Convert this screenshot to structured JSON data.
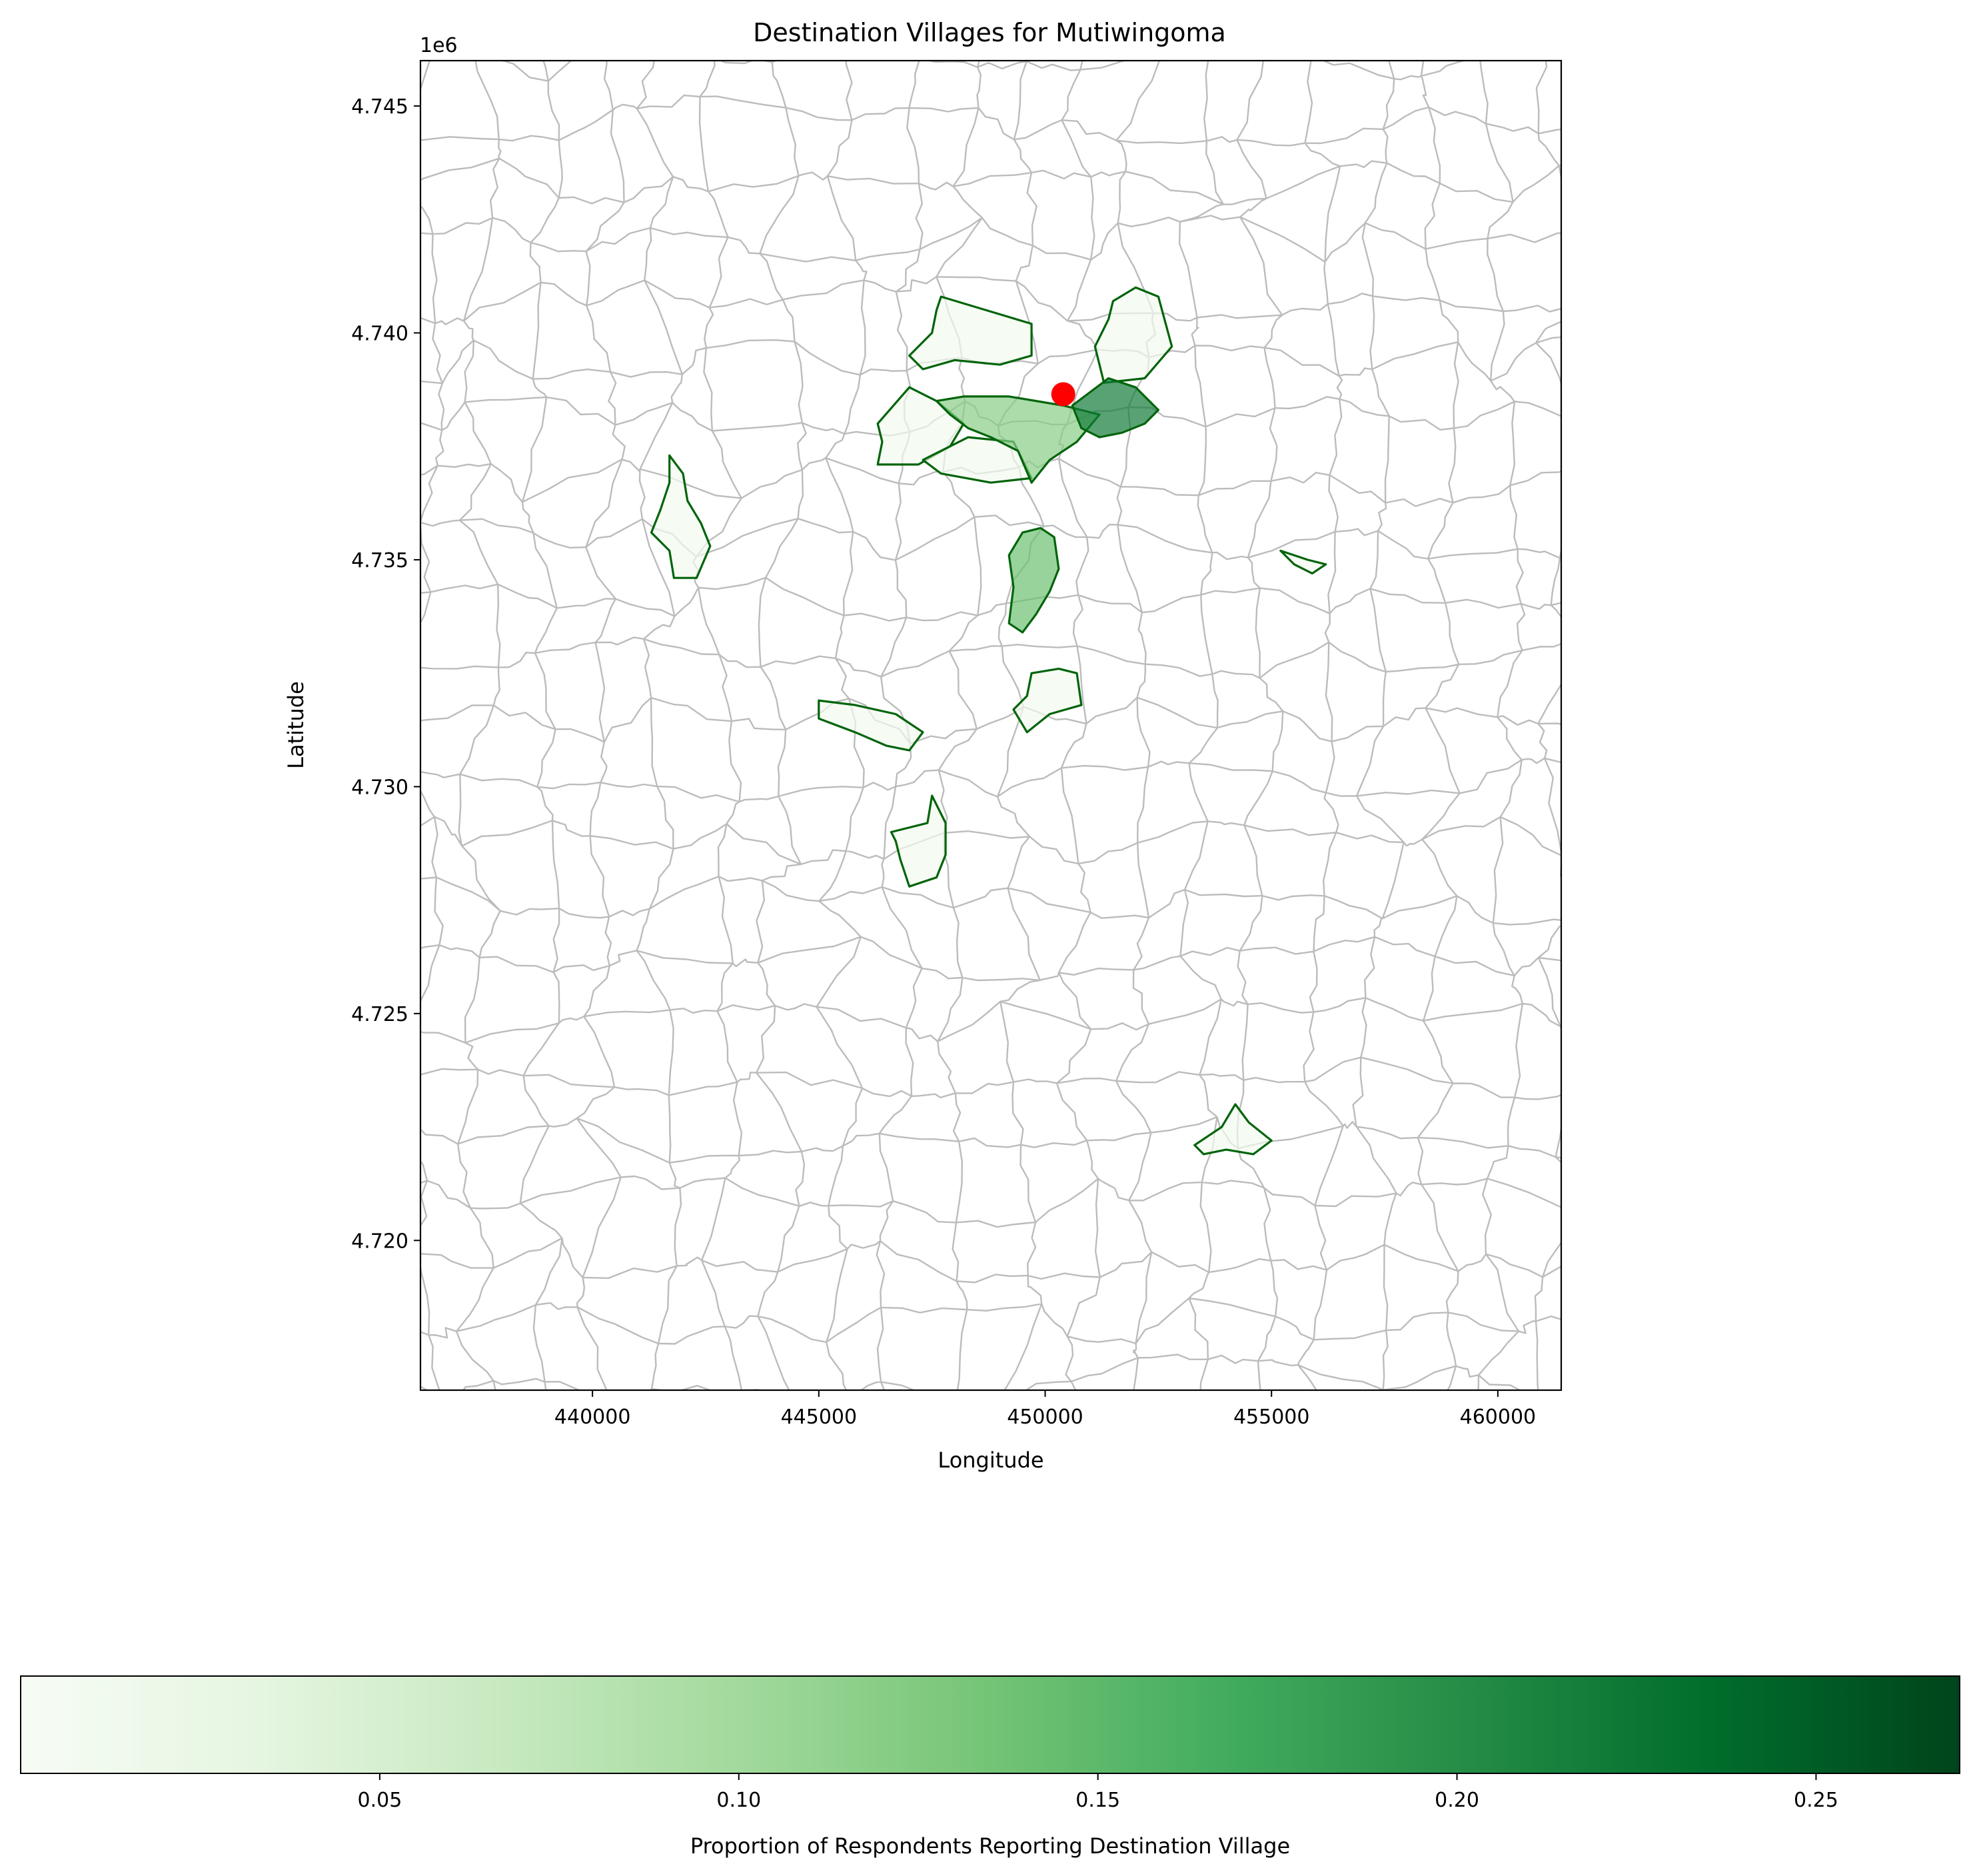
{
  "map": {
    "title": "Destination Villages for Mutiwingoma",
    "xlabel": "Longitude",
    "ylabel": "Latitude",
    "y_offset_label": "1e6",
    "x_ticks": [
      {
        "value": 440000,
        "label": "440000"
      },
      {
        "value": 445000,
        "label": "445000"
      },
      {
        "value": 450000,
        "label": "450000"
      },
      {
        "value": 455000,
        "label": "455000"
      },
      {
        "value": 460000,
        "label": "460000"
      }
    ],
    "y_ticks": [
      {
        "value": 4720000,
        "label": "4.720"
      },
      {
        "value": 4725000,
        "label": "4.725"
      },
      {
        "value": 4730000,
        "label": "4.730"
      },
      {
        "value": 4735000,
        "label": "4.735"
      },
      {
        "value": 4740000,
        "label": "4.740"
      },
      {
        "value": 4745000,
        "label": "4.745"
      }
    ],
    "xlim": [
      436200,
      461400
    ],
    "ylim": [
      4716700,
      4746000
    ],
    "origin_marker": {
      "x": 450400,
      "y": 4738650,
      "color": "#ff0000"
    },
    "colors": {
      "boundary": "#bcbcbc",
      "destination_edge": "#00640a",
      "frame": "#000000"
    }
  },
  "colorbar": {
    "label": "Proportion of Respondents Reporting Destination Village",
    "range": [
      0.0,
      0.27
    ],
    "cmap": "Greens",
    "ticks": [
      {
        "value": 0.05,
        "label": "0.05"
      },
      {
        "value": 0.1,
        "label": "0.10"
      },
      {
        "value": 0.15,
        "label": "0.15"
      },
      {
        "value": 0.2,
        "label": "0.20"
      },
      {
        "value": 0.25,
        "label": "0.25"
      }
    ]
  },
  "chart_data": {
    "type": "choropleth",
    "title": "Destination Villages for Mutiwingoma",
    "xlabel": "Longitude",
    "ylabel": "Latitude",
    "xlim": [
      436200,
      461400
    ],
    "ylim": [
      4716700,
      4746000
    ],
    "origin": {
      "x": 450400,
      "y": 4738650
    },
    "destinations": [
      {
        "id": "north-thin",
        "value": 0.01,
        "outline": [
          [
            447700,
            4740800
          ],
          [
            448700,
            4740500
          ],
          [
            449700,
            4740200
          ],
          [
            449700,
            4739500
          ],
          [
            449000,
            4739300
          ],
          [
            448000,
            4739400
          ],
          [
            447300,
            4739200
          ],
          [
            447000,
            4739500
          ],
          [
            447500,
            4740000
          ],
          [
            447600,
            4740500
          ]
        ]
      },
      {
        "id": "north-east-strip",
        "value": 0.01,
        "outline": [
          [
            451500,
            4740700
          ],
          [
            452000,
            4741000
          ],
          [
            452500,
            4740800
          ],
          [
            452800,
            4739700
          ],
          [
            452200,
            4739000
          ],
          [
            451300,
            4738900
          ],
          [
            451100,
            4739700
          ],
          [
            451400,
            4740300
          ]
        ]
      },
      {
        "id": "west-of-origin",
        "value": 0.01,
        "outline": [
          [
            446300,
            4738000
          ],
          [
            447000,
            4738800
          ],
          [
            447600,
            4738500
          ],
          [
            448200,
            4738000
          ],
          [
            447900,
            4737500
          ],
          [
            447200,
            4737100
          ],
          [
            446300,
            4737100
          ],
          [
            446400,
            4737600
          ]
        ]
      },
      {
        "id": "below-origin-west",
        "value": 0.01,
        "outline": [
          [
            447300,
            4737200
          ],
          [
            448300,
            4737700
          ],
          [
            449300,
            4737600
          ],
          [
            449700,
            4736800
          ],
          [
            448800,
            4736700
          ],
          [
            447700,
            4736900
          ]
        ]
      },
      {
        "id": "origin-village",
        "value": 0.12,
        "outline": [
          [
            447600,
            4738500
          ],
          [
            448200,
            4738600
          ],
          [
            449200,
            4738600
          ],
          [
            450400,
            4738400
          ],
          [
            451200,
            4738200
          ],
          [
            450700,
            4737600
          ],
          [
            450100,
            4737200
          ],
          [
            449700,
            4736700
          ],
          [
            449400,
            4737400
          ],
          [
            448800,
            4737700
          ],
          [
            448300,
            4737900
          ],
          [
            447900,
            4738200
          ]
        ]
      },
      {
        "id": "east-of-origin",
        "value": 0.22,
        "outline": [
          [
            450600,
            4738400
          ],
          [
            451000,
            4738700
          ],
          [
            451400,
            4739000
          ],
          [
            452000,
            4738800
          ],
          [
            452500,
            4738300
          ],
          [
            452200,
            4738000
          ],
          [
            451700,
            4737800
          ],
          [
            451200,
            4737700
          ],
          [
            450800,
            4737900
          ]
        ]
      },
      {
        "id": "central-elongated",
        "value": 0.14,
        "outline": [
          [
            449500,
            4735600
          ],
          [
            449900,
            4735700
          ],
          [
            450200,
            4735500
          ],
          [
            450300,
            4734800
          ],
          [
            450100,
            4734300
          ],
          [
            449800,
            4733800
          ],
          [
            449500,
            4733400
          ],
          [
            449200,
            4733600
          ],
          [
            449300,
            4734400
          ],
          [
            449200,
            4735100
          ]
        ]
      },
      {
        "id": "west-narrow",
        "value": 0.01,
        "outline": [
          [
            441700,
            4737300
          ],
          [
            442000,
            4736900
          ],
          [
            442100,
            4736300
          ],
          [
            442400,
            4735800
          ],
          [
            442600,
            4735300
          ],
          [
            442300,
            4734600
          ],
          [
            441800,
            4734600
          ],
          [
            441700,
            4735200
          ],
          [
            441300,
            4735600
          ],
          [
            441500,
            4736100
          ],
          [
            441700,
            4736700
          ]
        ]
      },
      {
        "id": "center-small",
        "value": 0.01,
        "outline": [
          [
            449700,
            4732500
          ],
          [
            450300,
            4732600
          ],
          [
            450700,
            4732500
          ],
          [
            450800,
            4731800
          ],
          [
            450100,
            4731600
          ],
          [
            449600,
            4731200
          ],
          [
            449300,
            4731700
          ],
          [
            449600,
            4732000
          ]
        ]
      },
      {
        "id": "west-elongated",
        "value": 0.01,
        "outline": [
          [
            445000,
            4731900
          ],
          [
            445800,
            4731800
          ],
          [
            446700,
            4731600
          ],
          [
            447300,
            4731200
          ],
          [
            447000,
            4730800
          ],
          [
            446500,
            4730900
          ],
          [
            445800,
            4731200
          ],
          [
            445000,
            4731500
          ]
        ]
      },
      {
        "id": "south-west",
        "value": 0.01,
        "outline": [
          [
            446600,
            4729000
          ],
          [
            447400,
            4729200
          ],
          [
            447500,
            4729800
          ],
          [
            447800,
            4729200
          ],
          [
            447800,
            4728500
          ],
          [
            447600,
            4728000
          ],
          [
            447000,
            4727800
          ],
          [
            446800,
            4728400
          ],
          [
            446700,
            4728800
          ]
        ]
      },
      {
        "id": "far-south",
        "value": 0.01,
        "outline": [
          [
            453300,
            4722100
          ],
          [
            453900,
            4722500
          ],
          [
            454200,
            4723000
          ],
          [
            454500,
            4722600
          ],
          [
            455000,
            4722200
          ],
          [
            454600,
            4721900
          ],
          [
            454000,
            4722000
          ],
          [
            453500,
            4721900
          ]
        ]
      },
      {
        "id": "east-tiny",
        "value": 0.01,
        "outline": [
          [
            455200,
            4735200
          ],
          [
            455800,
            4735000
          ],
          [
            456200,
            4734900
          ],
          [
            455900,
            4734700
          ],
          [
            455500,
            4734900
          ]
        ]
      }
    ]
  }
}
